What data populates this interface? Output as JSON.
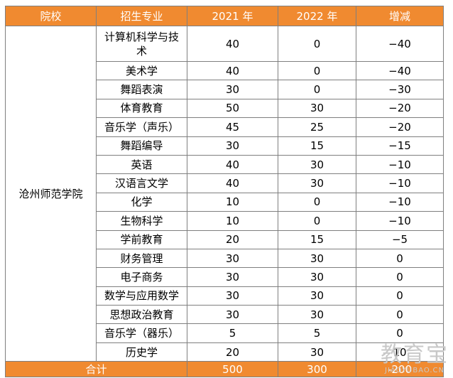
{
  "headers": [
    "院校",
    "招生专业",
    "2021 年",
    "2022 年",
    "增减"
  ],
  "school": "沧州师范学院",
  "rows": [
    {
      "major": "计算机科学与技术",
      "y2021": "40",
      "y2022": "0",
      "change": "−40"
    },
    {
      "major": "美术学",
      "y2021": "40",
      "y2022": "0",
      "change": "−40"
    },
    {
      "major": "舞蹈表演",
      "y2021": "30",
      "y2022": "0",
      "change": "−30"
    },
    {
      "major": "体育教育",
      "y2021": "50",
      "y2022": "30",
      "change": "−20"
    },
    {
      "major": "音乐学（声乐）",
      "y2021": "45",
      "y2022": "25",
      "change": "−20"
    },
    {
      "major": "舞蹈编导",
      "y2021": "30",
      "y2022": "15",
      "change": "−15"
    },
    {
      "major": "英语",
      "y2021": "40",
      "y2022": "30",
      "change": "−10"
    },
    {
      "major": "汉语言文学",
      "y2021": "40",
      "y2022": "30",
      "change": "−10"
    },
    {
      "major": "化学",
      "y2021": "10",
      "y2022": "0",
      "change": "−10"
    },
    {
      "major": "生物科学",
      "y2021": "10",
      "y2022": "0",
      "change": "−10"
    },
    {
      "major": "学前教育",
      "y2021": "20",
      "y2022": "15",
      "change": "−5"
    },
    {
      "major": "财务管理",
      "y2021": "30",
      "y2022": "30",
      "change": "0"
    },
    {
      "major": "电子商务",
      "y2021": "30",
      "y2022": "30",
      "change": "0"
    },
    {
      "major": "数学与应用数学",
      "y2021": "30",
      "y2022": "30",
      "change": "0"
    },
    {
      "major": "思想政治教育",
      "y2021": "30",
      "y2022": "30",
      "change": "0"
    },
    {
      "major": "音乐学（器乐）",
      "y2021": "5",
      "y2022": "5",
      "change": "0"
    },
    {
      "major": "历史学",
      "y2021": "20",
      "y2022": "30",
      "change": "10"
    }
  ],
  "total": {
    "label": "合计",
    "y2021": "500",
    "y2022": "300",
    "change": "-200"
  },
  "watermark": {
    "main": "教育宝",
    "sub": "JIAOYUBAO.CN"
  },
  "colors": {
    "header_bg": "#f08a30",
    "header_text": "#ffffff",
    "border": "#7f7f7f"
  }
}
